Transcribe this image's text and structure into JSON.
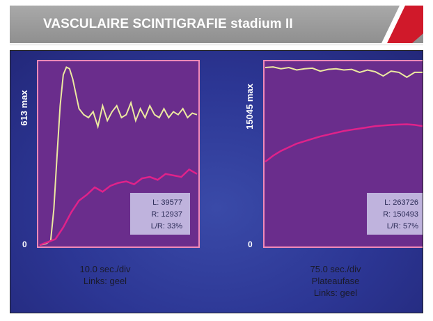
{
  "header": {
    "title": "VASCULAIRE SCINTIGRAFIE stadium II"
  },
  "colors": {
    "plot_bg": "#6a2d8c",
    "frame": "#f28ab8",
    "left_curve": "#ece9a0",
    "right_curve": "#e0228a",
    "label_box": "#c9c2e6",
    "header_bg": "#999999",
    "accent_red": "#d0192a"
  },
  "chart_data": [
    {
      "type": "line",
      "ylabel": "613 max",
      "ytick_zero": "0",
      "ylim": [
        0,
        613
      ],
      "xlim": [
        0,
        100
      ],
      "caption": [
        "10.0 sec./div",
        "Links: geel"
      ],
      "stats": [
        "L: 39577",
        "R: 12937",
        "L/R: 33%"
      ],
      "series": [
        {
          "name": "Links: geel",
          "color": "#ece9a0",
          "x": [
            0,
            4,
            7,
            9,
            11,
            13,
            15,
            17,
            19,
            21,
            23,
            25,
            28,
            31,
            34,
            37,
            40,
            43,
            46,
            49,
            52,
            55,
            58,
            61,
            64,
            67,
            70,
            73,
            76,
            79,
            82,
            85,
            88,
            91,
            94,
            97,
            100
          ],
          "y": [
            0,
            5,
            15,
            120,
            300,
            470,
            575,
            600,
            595,
            560,
            510,
            460,
            440,
            430,
            450,
            400,
            470,
            420,
            450,
            470,
            430,
            440,
            480,
            420,
            460,
            430,
            470,
            440,
            430,
            460,
            430,
            450,
            440,
            460,
            430,
            445,
            440
          ]
        },
        {
          "name": "",
          "color": "#e0228a",
          "x": [
            0,
            5,
            10,
            15,
            20,
            25,
            30,
            35,
            40,
            45,
            50,
            55,
            60,
            65,
            70,
            75,
            80,
            85,
            90,
            95,
            100
          ],
          "y": [
            0,
            10,
            20,
            60,
            110,
            150,
            170,
            195,
            180,
            200,
            210,
            215,
            205,
            225,
            230,
            220,
            240,
            235,
            230,
            255,
            240
          ]
        }
      ]
    },
    {
      "type": "line",
      "ylabel": "15045 max",
      "ytick_zero": "0",
      "ylim": [
        0,
        15045
      ],
      "xlim": [
        0,
        100
      ],
      "caption": [
        "75.0 sec./div",
        "Plateaufase",
        "Links: geel"
      ],
      "stats": [
        "L: 263726",
        "R: 150493",
        "L/R: 57%"
      ],
      "series": [
        {
          "name": "Links: geel",
          "color": "#ece9a0",
          "x": [
            0,
            5,
            10,
            15,
            20,
            25,
            30,
            35,
            40,
            45,
            50,
            55,
            60,
            65,
            70,
            75,
            80,
            85,
            90,
            95,
            100
          ],
          "y": [
            14700,
            14750,
            14600,
            14700,
            14500,
            14600,
            14650,
            14400,
            14550,
            14600,
            14500,
            14550,
            14300,
            14500,
            14350,
            14000,
            14400,
            14300,
            13900,
            14300,
            14300
          ]
        },
        {
          "name": "",
          "color": "#e0228a",
          "x": [
            0,
            5,
            10,
            15,
            20,
            25,
            30,
            35,
            40,
            45,
            50,
            55,
            60,
            65,
            70,
            75,
            80,
            85,
            90,
            95,
            100
          ],
          "y": [
            6900,
            7400,
            7800,
            8100,
            8400,
            8600,
            8800,
            9000,
            9150,
            9300,
            9450,
            9550,
            9650,
            9750,
            9850,
            9900,
            9950,
            9980,
            10000,
            9950,
            9850
          ]
        }
      ]
    }
  ]
}
